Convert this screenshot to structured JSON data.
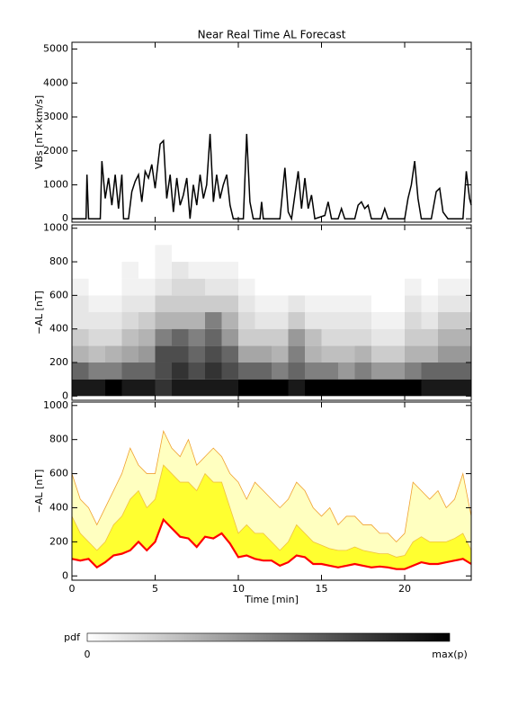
{
  "chart_data": [
    {
      "type": "line",
      "title": "Near Real Time AL Forecast",
      "ylabel": "VBs [nT×km/s]",
      "color": "#000000",
      "xlim": [
        0,
        24
      ],
      "xticks": [
        0,
        5,
        10,
        15,
        20
      ],
      "ylim": [
        -100,
        5200
      ],
      "yticks": [
        0,
        1000,
        2000,
        3000,
        4000,
        5000
      ],
      "x": [
        0,
        0.85,
        0.9,
        1.0,
        1.7,
        1.8,
        2.0,
        2.2,
        2.4,
        2.6,
        2.8,
        3.0,
        3.1,
        3.4,
        3.6,
        3.8,
        4.0,
        4.2,
        4.4,
        4.6,
        4.8,
        5.0,
        5.3,
        5.5,
        5.7,
        5.9,
        6.1,
        6.3,
        6.5,
        6.7,
        6.9,
        7.1,
        7.3,
        7.5,
        7.7,
        7.9,
        8.1,
        8.3,
        8.5,
        8.7,
        8.9,
        9.1,
        9.3,
        9.5,
        9.7,
        10.3,
        10.5,
        10.7,
        10.9,
        11.3,
        11.4,
        11.5,
        12.5,
        12.8,
        13.0,
        13.2,
        13.6,
        13.8,
        14.0,
        14.2,
        14.4,
        14.6,
        15.2,
        15.4,
        15.6,
        16.0,
        16.2,
        16.4,
        17.0,
        17.2,
        17.4,
        17.6,
        17.8,
        18.0,
        18.6,
        18.8,
        19.0,
        20.0,
        20.2,
        20.4,
        20.6,
        20.8,
        21.0,
        21.6,
        21.9,
        22.1,
        22.3,
        22.6,
        23.5,
        23.7,
        23.9,
        24.0
      ],
      "values": [
        0,
        0,
        1300,
        0,
        0,
        1700,
        600,
        1200,
        400,
        1300,
        300,
        1300,
        0,
        0,
        800,
        1100,
        1300,
        500,
        1400,
        1200,
        1600,
        900,
        2200,
        2300,
        600,
        1300,
        200,
        1200,
        400,
        700,
        1200,
        0,
        1000,
        400,
        1300,
        600,
        1000,
        2500,
        500,
        1300,
        600,
        1000,
        1300,
        400,
        0,
        0,
        2500,
        500,
        0,
        0,
        500,
        0,
        0,
        1500,
        200,
        0,
        1400,
        300,
        1200,
        300,
        700,
        0,
        100,
        500,
        0,
        0,
        300,
        0,
        0,
        400,
        500,
        300,
        400,
        0,
        0,
        300,
        0,
        0,
        600,
        1000,
        1700,
        600,
        0,
        0,
        800,
        900,
        200,
        0,
        0,
        1400,
        600,
        400
      ]
    },
    {
      "type": "heatmap",
      "ylabel": "−AL [nT]",
      "xlim": [
        0,
        24
      ],
      "xticks": [
        0,
        5,
        10,
        15,
        20
      ],
      "ylim": [
        -25,
        1020
      ],
      "yticks": [
        0,
        200,
        400,
        600,
        800,
        1000
      ],
      "xbins": [
        0,
        1,
        2,
        3,
        4,
        5,
        6,
        7,
        8,
        9,
        10,
        11,
        12,
        13,
        14,
        15,
        16,
        17,
        18,
        19,
        20,
        21,
        22,
        23,
        24
      ],
      "ybins": [
        0,
        100,
        200,
        300,
        400,
        500,
        600,
        700,
        800,
        900
      ],
      "values": [
        [
          0.9,
          0.6,
          0.3,
          0.2,
          0.1,
          0.1,
          0.05,
          0,
          0
        ],
        [
          0.9,
          0.5,
          0.25,
          0.15,
          0.1,
          0.05,
          0,
          0,
          0
        ],
        [
          1,
          0.5,
          0.3,
          0.15,
          0.1,
          0.05,
          0,
          0,
          0
        ],
        [
          0.9,
          0.6,
          0.35,
          0.25,
          0.15,
          0.1,
          0.05,
          0.05,
          0
        ],
        [
          0.9,
          0.6,
          0.4,
          0.3,
          0.2,
          0.1,
          0.05,
          0,
          0
        ],
        [
          0.8,
          0.7,
          0.7,
          0.5,
          0.3,
          0.2,
          0.1,
          0.05,
          0.05
        ],
        [
          0.9,
          0.8,
          0.7,
          0.6,
          0.3,
          0.2,
          0.15,
          0.1,
          0
        ],
        [
          0.9,
          0.7,
          0.6,
          0.5,
          0.3,
          0.2,
          0.15,
          0.05,
          0
        ],
        [
          0.9,
          0.8,
          0.7,
          0.6,
          0.5,
          0.2,
          0.1,
          0.05,
          0
        ],
        [
          0.9,
          0.7,
          0.6,
          0.4,
          0.3,
          0.2,
          0.1,
          0.05,
          0
        ],
        [
          1,
          0.6,
          0.35,
          0.2,
          0.15,
          0.1,
          0.05,
          0,
          0
        ],
        [
          1,
          0.6,
          0.35,
          0.2,
          0.1,
          0.05,
          0,
          0,
          0
        ],
        [
          1,
          0.5,
          0.3,
          0.2,
          0.1,
          0.05,
          0,
          0,
          0
        ],
        [
          0.9,
          0.6,
          0.5,
          0.4,
          0.2,
          0.1,
          0,
          0,
          0
        ],
        [
          1,
          0.5,
          0.3,
          0.25,
          0.1,
          0.05,
          0,
          0,
          0
        ],
        [
          1,
          0.5,
          0.25,
          0.15,
          0.1,
          0.05,
          0,
          0,
          0
        ],
        [
          1,
          0.4,
          0.25,
          0.15,
          0.1,
          0.05,
          0,
          0,
          0
        ],
        [
          1,
          0.5,
          0.3,
          0.15,
          0.1,
          0.05,
          0,
          0,
          0
        ],
        [
          1,
          0.4,
          0.2,
          0.1,
          0.05,
          0,
          0,
          0,
          0
        ],
        [
          1,
          0.4,
          0.2,
          0.1,
          0.05,
          0,
          0,
          0,
          0
        ],
        [
          1,
          0.5,
          0.3,
          0.2,
          0.15,
          0.1,
          0.05,
          0,
          0
        ],
        [
          0.9,
          0.6,
          0.3,
          0.2,
          0.1,
          0.05,
          0,
          0,
          0
        ],
        [
          0.9,
          0.6,
          0.4,
          0.3,
          0.2,
          0.1,
          0.05,
          0,
          0
        ],
        [
          0.9,
          0.6,
          0.4,
          0.3,
          0.2,
          0.1,
          0.05,
          0,
          0
        ]
      ],
      "colorbar": {
        "label": "pdf",
        "min_label": "0",
        "max_label": "max(p)"
      }
    },
    {
      "type": "area",
      "ylabel": "−AL [nT]",
      "xlabel": "Time [min]",
      "xlim": [
        0,
        24
      ],
      "xticks": [
        0,
        5,
        10,
        15,
        20
      ],
      "ylim": [
        -25,
        1020
      ],
      "yticks": [
        0,
        200,
        400,
        600,
        800,
        1000
      ],
      "x": [
        0,
        0.5,
        1,
        1.5,
        2,
        2.5,
        3,
        3.5,
        4,
        4.5,
        5,
        5.5,
        6,
        6.5,
        7,
        7.5,
        8,
        8.5,
        9,
        9.5,
        10,
        10.5,
        11,
        11.5,
        12,
        12.5,
        13,
        13.5,
        14,
        14.5,
        15,
        15.5,
        16,
        16.5,
        17,
        17.5,
        18,
        18.5,
        19,
        19.5,
        20,
        20.5,
        21,
        21.5,
        22,
        22.5,
        23,
        23.5,
        24
      ],
      "series": [
        {
          "color": "#ffffc0",
          "edge_color": "#f0a030",
          "values": [
            600,
            450,
            400,
            300,
            400,
            500,
            600,
            750,
            650,
            600,
            600,
            850,
            750,
            700,
            800,
            650,
            700,
            750,
            700,
            600,
            550,
            450,
            550,
            500,
            450,
            400,
            450,
            550,
            500,
            400,
            350,
            400,
            300,
            350,
            350,
            300,
            300,
            250,
            250,
            200,
            250,
            550,
            500,
            450,
            500,
            400,
            450,
            600,
            350
          ]
        },
        {
          "color": "#ffff30",
          "edge_color": "#f0c040",
          "values": [
            350,
            250,
            200,
            150,
            200,
            300,
            350,
            450,
            500,
            400,
            450,
            650,
            600,
            550,
            550,
            500,
            600,
            550,
            550,
            400,
            250,
            300,
            250,
            250,
            200,
            150,
            200,
            300,
            250,
            200,
            180,
            160,
            150,
            150,
            170,
            150,
            140,
            130,
            130,
            110,
            120,
            200,
            230,
            200,
            200,
            200,
            220,
            250,
            150
          ]
        },
        {
          "color": "#ff0000",
          "values": [
            100,
            90,
            100,
            50,
            80,
            120,
            130,
            150,
            200,
            150,
            200,
            330,
            280,
            230,
            220,
            170,
            230,
            220,
            250,
            190,
            110,
            120,
            100,
            90,
            90,
            60,
            80,
            120,
            110,
            70,
            70,
            60,
            50,
            60,
            70,
            60,
            50,
            55,
            50,
            40,
            40,
            60,
            80,
            70,
            70,
            80,
            90,
            100,
            70
          ]
        }
      ]
    }
  ]
}
